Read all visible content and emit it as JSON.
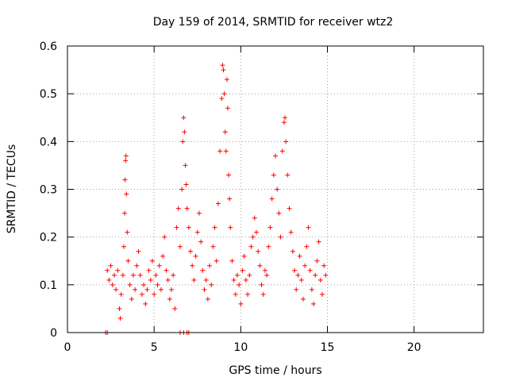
{
  "chart_data": {
    "type": "scatter",
    "title": "Day 159 of 2014, SRMTID for receiver wtz2",
    "xlabel": "GPS time / hours",
    "ylabel": "SRMTID / TECUs",
    "xlim": [
      0,
      24
    ],
    "ylim": [
      0,
      0.6
    ],
    "x_ticks": [
      0,
      5,
      10,
      15,
      20
    ],
    "x_tick_labels": [
      "0",
      "5",
      "10",
      "15",
      "20"
    ],
    "y_ticks": [
      0,
      0.1,
      0.2,
      0.3,
      0.4,
      0.5,
      0.6
    ],
    "y_tick_labels": [
      "0",
      "0.1",
      "0.2",
      "0.3",
      "0.4",
      "0.5",
      "0.6"
    ],
    "grid": true,
    "marker": "plus",
    "color": "#ff0000",
    "series": [
      {
        "name": "SRMTID",
        "points": [
          [
            2.2,
            0.0
          ],
          [
            2.3,
            0.0
          ],
          [
            6.5,
            0.0
          ],
          [
            6.7,
            0.0
          ],
          [
            6.9,
            0.0
          ],
          [
            7.0,
            0.0
          ],
          [
            2.3,
            0.13
          ],
          [
            2.4,
            0.11
          ],
          [
            2.5,
            0.14
          ],
          [
            2.6,
            0.1
          ],
          [
            2.7,
            0.12
          ],
          [
            2.8,
            0.09
          ],
          [
            2.9,
            0.13
          ],
          [
            3.0,
            0.05
          ],
          [
            3.05,
            0.03
          ],
          [
            3.1,
            0.08
          ],
          [
            3.2,
            0.12
          ],
          [
            3.25,
            0.18
          ],
          [
            3.3,
            0.25
          ],
          [
            3.32,
            0.32
          ],
          [
            3.35,
            0.36
          ],
          [
            3.38,
            0.37
          ],
          [
            3.4,
            0.29
          ],
          [
            3.45,
            0.21
          ],
          [
            3.5,
            0.15
          ],
          [
            3.6,
            0.1
          ],
          [
            3.7,
            0.07
          ],
          [
            3.8,
            0.12
          ],
          [
            3.9,
            0.09
          ],
          [
            4.0,
            0.14
          ],
          [
            4.1,
            0.17
          ],
          [
            4.2,
            0.12
          ],
          [
            4.3,
            0.08
          ],
          [
            4.4,
            0.1
          ],
          [
            4.5,
            0.06
          ],
          [
            4.6,
            0.09
          ],
          [
            4.7,
            0.13
          ],
          [
            4.8,
            0.11
          ],
          [
            4.9,
            0.15
          ],
          [
            5.0,
            0.08
          ],
          [
            5.1,
            0.12
          ],
          [
            5.2,
            0.1
          ],
          [
            5.3,
            0.14
          ],
          [
            5.4,
            0.09
          ],
          [
            5.5,
            0.16
          ],
          [
            5.6,
            0.2
          ],
          [
            5.7,
            0.13
          ],
          [
            5.8,
            0.11
          ],
          [
            5.9,
            0.07
          ],
          [
            6.0,
            0.09
          ],
          [
            6.1,
            0.12
          ],
          [
            6.2,
            0.05
          ],
          [
            6.3,
            0.22
          ],
          [
            6.4,
            0.26
          ],
          [
            6.5,
            0.18
          ],
          [
            6.6,
            0.3
          ],
          [
            6.65,
            0.4
          ],
          [
            6.7,
            0.45
          ],
          [
            6.75,
            0.42
          ],
          [
            6.8,
            0.35
          ],
          [
            6.85,
            0.31
          ],
          [
            6.9,
            0.26
          ],
          [
            7.0,
            0.22
          ],
          [
            7.1,
            0.17
          ],
          [
            7.2,
            0.14
          ],
          [
            7.3,
            0.11
          ],
          [
            7.4,
            0.16
          ],
          [
            7.5,
            0.21
          ],
          [
            7.6,
            0.25
          ],
          [
            7.7,
            0.19
          ],
          [
            7.8,
            0.13
          ],
          [
            7.9,
            0.09
          ],
          [
            8.0,
            0.11
          ],
          [
            8.1,
            0.07
          ],
          [
            8.2,
            0.14
          ],
          [
            8.3,
            0.1
          ],
          [
            8.4,
            0.18
          ],
          [
            8.5,
            0.22
          ],
          [
            8.6,
            0.15
          ],
          [
            8.7,
            0.27
          ],
          [
            8.8,
            0.38
          ],
          [
            8.9,
            0.49
          ],
          [
            8.95,
            0.56
          ],
          [
            9.0,
            0.55
          ],
          [
            9.05,
            0.5
          ],
          [
            9.1,
            0.42
          ],
          [
            9.15,
            0.38
          ],
          [
            9.2,
            0.53
          ],
          [
            9.25,
            0.47
          ],
          [
            9.3,
            0.33
          ],
          [
            9.35,
            0.28
          ],
          [
            9.4,
            0.22
          ],
          [
            9.5,
            0.15
          ],
          [
            9.6,
            0.11
          ],
          [
            9.7,
            0.08
          ],
          [
            9.8,
            0.12
          ],
          [
            9.9,
            0.1
          ],
          [
            10.0,
            0.06
          ],
          [
            10.1,
            0.13
          ],
          [
            10.2,
            0.16
          ],
          [
            10.3,
            0.11
          ],
          [
            10.4,
            0.08
          ],
          [
            10.5,
            0.12
          ],
          [
            10.6,
            0.18
          ],
          [
            10.7,
            0.2
          ],
          [
            10.8,
            0.24
          ],
          [
            10.9,
            0.21
          ],
          [
            11.0,
            0.17
          ],
          [
            11.1,
            0.14
          ],
          [
            11.2,
            0.1
          ],
          [
            11.3,
            0.08
          ],
          [
            11.4,
            0.13
          ],
          [
            11.5,
            0.12
          ],
          [
            11.6,
            0.18
          ],
          [
            11.7,
            0.22
          ],
          [
            11.8,
            0.28
          ],
          [
            11.9,
            0.33
          ],
          [
            12.0,
            0.37
          ],
          [
            12.1,
            0.3
          ],
          [
            12.2,
            0.25
          ],
          [
            12.3,
            0.2
          ],
          [
            12.4,
            0.38
          ],
          [
            12.5,
            0.44
          ],
          [
            12.55,
            0.45
          ],
          [
            12.6,
            0.4
          ],
          [
            12.7,
            0.33
          ],
          [
            12.8,
            0.26
          ],
          [
            12.9,
            0.21
          ],
          [
            13.0,
            0.17
          ],
          [
            13.1,
            0.13
          ],
          [
            13.2,
            0.09
          ],
          [
            13.3,
            0.12
          ],
          [
            13.4,
            0.16
          ],
          [
            13.5,
            0.11
          ],
          [
            13.6,
            0.07
          ],
          [
            13.7,
            0.14
          ],
          [
            13.8,
            0.18
          ],
          [
            13.9,
            0.22
          ],
          [
            14.0,
            0.13
          ],
          [
            14.1,
            0.09
          ],
          [
            14.2,
            0.06
          ],
          [
            14.3,
            0.12
          ],
          [
            14.4,
            0.15
          ],
          [
            14.5,
            0.19
          ],
          [
            14.6,
            0.11
          ],
          [
            14.7,
            0.08
          ],
          [
            14.8,
            0.14
          ],
          [
            14.9,
            0.12
          ]
        ]
      }
    ]
  }
}
